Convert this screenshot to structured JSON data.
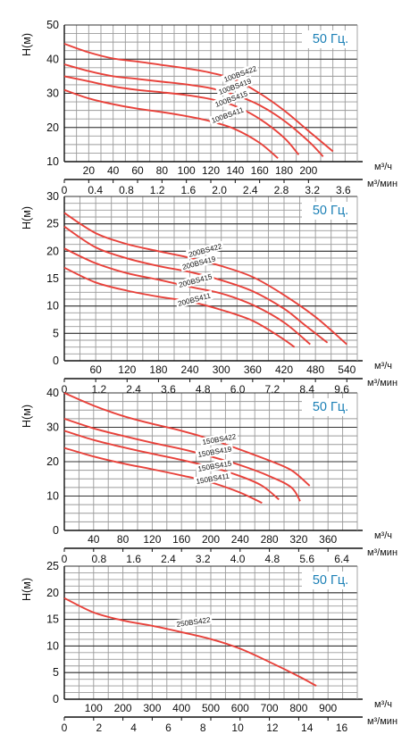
{
  "colors": {
    "curve": "#e8413a",
    "grid": "#9a9a9a",
    "axis": "#111111",
    "frequency": "#1a7fb5"
  },
  "chart_data": [
    {
      "type": "line",
      "frequency_label": "50 Гц.",
      "ylabel": "H(м)",
      "ylim": [
        10,
        50
      ],
      "yticks": [
        10,
        20,
        30,
        40,
        50
      ],
      "xlim": [
        0,
        240
      ],
      "xlabel": "м³/ч",
      "xticks": [
        20,
        40,
        60,
        80,
        100,
        120,
        140,
        160,
        180,
        200
      ],
      "x2label": "м³/мин",
      "x2ticks": [
        "0",
        "0.4",
        "0.8",
        "1.2",
        "1.6",
        "2.0",
        "2.4",
        "2.8",
        "3.2",
        "3.6"
      ],
      "series": [
        {
          "name": "100BS422",
          "points": [
            [
              0,
              44.5
            ],
            [
              20,
              42
            ],
            [
              40,
              40.2
            ],
            [
              60,
              39.3
            ],
            [
              80,
              38.3
            ],
            [
              100,
              37.3
            ],
            [
              120,
              36
            ],
            [
              140,
              34
            ],
            [
              160,
              30
            ],
            [
              180,
              25
            ],
            [
              200,
              19
            ],
            [
              220,
              13
            ]
          ]
        },
        {
          "name": "100BS419",
          "points": [
            [
              0,
              38.5
            ],
            [
              20,
              36.5
            ],
            [
              40,
              35
            ],
            [
              60,
              34.2
            ],
            [
              80,
              33.4
            ],
            [
              100,
              32.6
            ],
            [
              120,
              31.5
            ],
            [
              140,
              29.5
            ],
            [
              160,
              26.5
            ],
            [
              180,
              22
            ],
            [
              200,
              16
            ],
            [
              212,
              11.5
            ]
          ]
        },
        {
          "name": "100BS415",
          "points": [
            [
              0,
              35
            ],
            [
              20,
              33.5
            ],
            [
              40,
              32
            ],
            [
              60,
              31
            ],
            [
              80,
              30.3
            ],
            [
              100,
              29.5
            ],
            [
              120,
              28.3
            ],
            [
              140,
              26.3
            ],
            [
              160,
              22.5
            ],
            [
              180,
              17
            ],
            [
              192,
              12
            ]
          ]
        },
        {
          "name": "100BS411",
          "points": [
            [
              0,
              31
            ],
            [
              20,
              28.5
            ],
            [
              40,
              26.8
            ],
            [
              60,
              25.5
            ],
            [
              80,
              24.5
            ],
            [
              100,
              23.3
            ],
            [
              120,
              21.8
            ],
            [
              140,
              19.5
            ],
            [
              160,
              15.5
            ],
            [
              175,
              11
            ]
          ]
        }
      ]
    },
    {
      "type": "line",
      "frequency_label": "50 Гц.",
      "ylabel": "H(м)",
      "ylim": [
        0,
        30
      ],
      "yticks": [
        0,
        5,
        10,
        15,
        20,
        25,
        30
      ],
      "xlim": [
        0,
        560
      ],
      "xlabel": "м³/ч",
      "xticks": [
        60,
        120,
        180,
        240,
        300,
        360,
        420,
        480,
        540
      ],
      "x2label": "м³/мин",
      "x2ticks": [
        "0",
        "1.2",
        "2.4",
        "3.6",
        "4.8",
        "6.0",
        "7.2",
        "8.4",
        "9.6"
      ],
      "series": [
        {
          "name": "200BS422",
          "points": [
            [
              0,
              27
            ],
            [
              60,
              23.3
            ],
            [
              120,
              21.3
            ],
            [
              180,
              20
            ],
            [
              240,
              18.8
            ],
            [
              300,
              17.3
            ],
            [
              360,
              15.3
            ],
            [
              420,
              12
            ],
            [
              480,
              8
            ],
            [
              540,
              3
            ]
          ]
        },
        {
          "name": "200BS419",
          "points": [
            [
              0,
              24.5
            ],
            [
              60,
              20.7
            ],
            [
              120,
              18.7
            ],
            [
              180,
              17.3
            ],
            [
              240,
              16.2
            ],
            [
              300,
              14.7
            ],
            [
              360,
              12.7
            ],
            [
              420,
              9.5
            ],
            [
              460,
              6.5
            ],
            [
              503,
              3.3
            ]
          ]
        },
        {
          "name": "200BS415",
          "points": [
            [
              0,
              20.5
            ],
            [
              60,
              17.8
            ],
            [
              120,
              16
            ],
            [
              180,
              14.8
            ],
            [
              240,
              13.5
            ],
            [
              300,
              12.3
            ],
            [
              360,
              10.2
            ],
            [
              420,
              7
            ],
            [
              470,
              3
            ]
          ]
        },
        {
          "name": "200BS411",
          "points": [
            [
              0,
              17
            ],
            [
              60,
              14.3
            ],
            [
              120,
              12.8
            ],
            [
              180,
              11.7
            ],
            [
              240,
              10.8
            ],
            [
              300,
              9.3
            ],
            [
              360,
              7.3
            ],
            [
              410,
              4.5
            ],
            [
              440,
              2.5
            ]
          ]
        }
      ]
    },
    {
      "type": "line",
      "frequency_label": "50 Гц.",
      "ylabel": "H(м)",
      "ylim": [
        0,
        40
      ],
      "yticks": [
        0,
        10,
        20,
        30,
        40
      ],
      "xlim": [
        0,
        400
      ],
      "xlabel": "м³/ч",
      "xticks": [
        40,
        80,
        120,
        160,
        200,
        240,
        280,
        320,
        360
      ],
      "x2label": "м³/мин",
      "x2ticks": [
        "0",
        "0.8",
        "1.6",
        "2.4",
        "3.2",
        "4.0",
        "4.8",
        "5.6",
        "6.4"
      ],
      "series": [
        {
          "name": "150BS422",
          "points": [
            [
              0,
              40
            ],
            [
              40,
              36.3
            ],
            [
              80,
              33.3
            ],
            [
              120,
              31
            ],
            [
              160,
              29
            ],
            [
              200,
              26.5
            ],
            [
              240,
              23.5
            ],
            [
              280,
              20.3
            ],
            [
              310,
              17.5
            ],
            [
              335,
              13
            ]
          ]
        },
        {
          "name": "150BS419",
          "points": [
            [
              0,
              32.5
            ],
            [
              40,
              29.7
            ],
            [
              80,
              27.5
            ],
            [
              120,
              25.5
            ],
            [
              160,
              23.7
            ],
            [
              200,
              21.5
            ],
            [
              240,
              19
            ],
            [
              280,
              15.8
            ],
            [
              310,
              12.5
            ],
            [
              322,
              8.5
            ]
          ]
        },
        {
          "name": "150BS415",
          "points": [
            [
              0,
              29
            ],
            [
              40,
              26.3
            ],
            [
              80,
              24.2
            ],
            [
              120,
              22.3
            ],
            [
              160,
              20.5
            ],
            [
              200,
              18.5
            ],
            [
              240,
              15.8
            ],
            [
              270,
              13
            ],
            [
              293,
              9
            ]
          ]
        },
        {
          "name": "150BS411",
          "points": [
            [
              0,
              24
            ],
            [
              40,
              21.5
            ],
            [
              80,
              19.5
            ],
            [
              120,
              17.8
            ],
            [
              160,
              16
            ],
            [
              200,
              14
            ],
            [
              240,
              11
            ],
            [
              270,
              8
            ]
          ]
        }
      ]
    },
    {
      "type": "line",
      "frequency_label": "50 Гц.",
      "ylabel": "H(м)",
      "ylim": [
        0,
        25
      ],
      "yticks": [
        0,
        5,
        10,
        15,
        20,
        25
      ],
      "xlim": [
        0,
        1000
      ],
      "xlabel": "м³/ч",
      "xticks": [
        100,
        200,
        300,
        400,
        500,
        600,
        700,
        800,
        900
      ],
      "x2label": "м³/мин",
      "x2ticks": [
        "0",
        "2",
        "4",
        "6",
        "8",
        "10",
        "12",
        "14",
        "16"
      ],
      "series": [
        {
          "name": "250BS422",
          "points": [
            [
              0,
              19
            ],
            [
              100,
              16.3
            ],
            [
              200,
              14.8
            ],
            [
              300,
              13.8
            ],
            [
              400,
              12.6
            ],
            [
              500,
              11.3
            ],
            [
              600,
              9.5
            ],
            [
              700,
              7
            ],
            [
              800,
              4.3
            ],
            [
              860,
              2.5
            ]
          ]
        }
      ]
    }
  ]
}
